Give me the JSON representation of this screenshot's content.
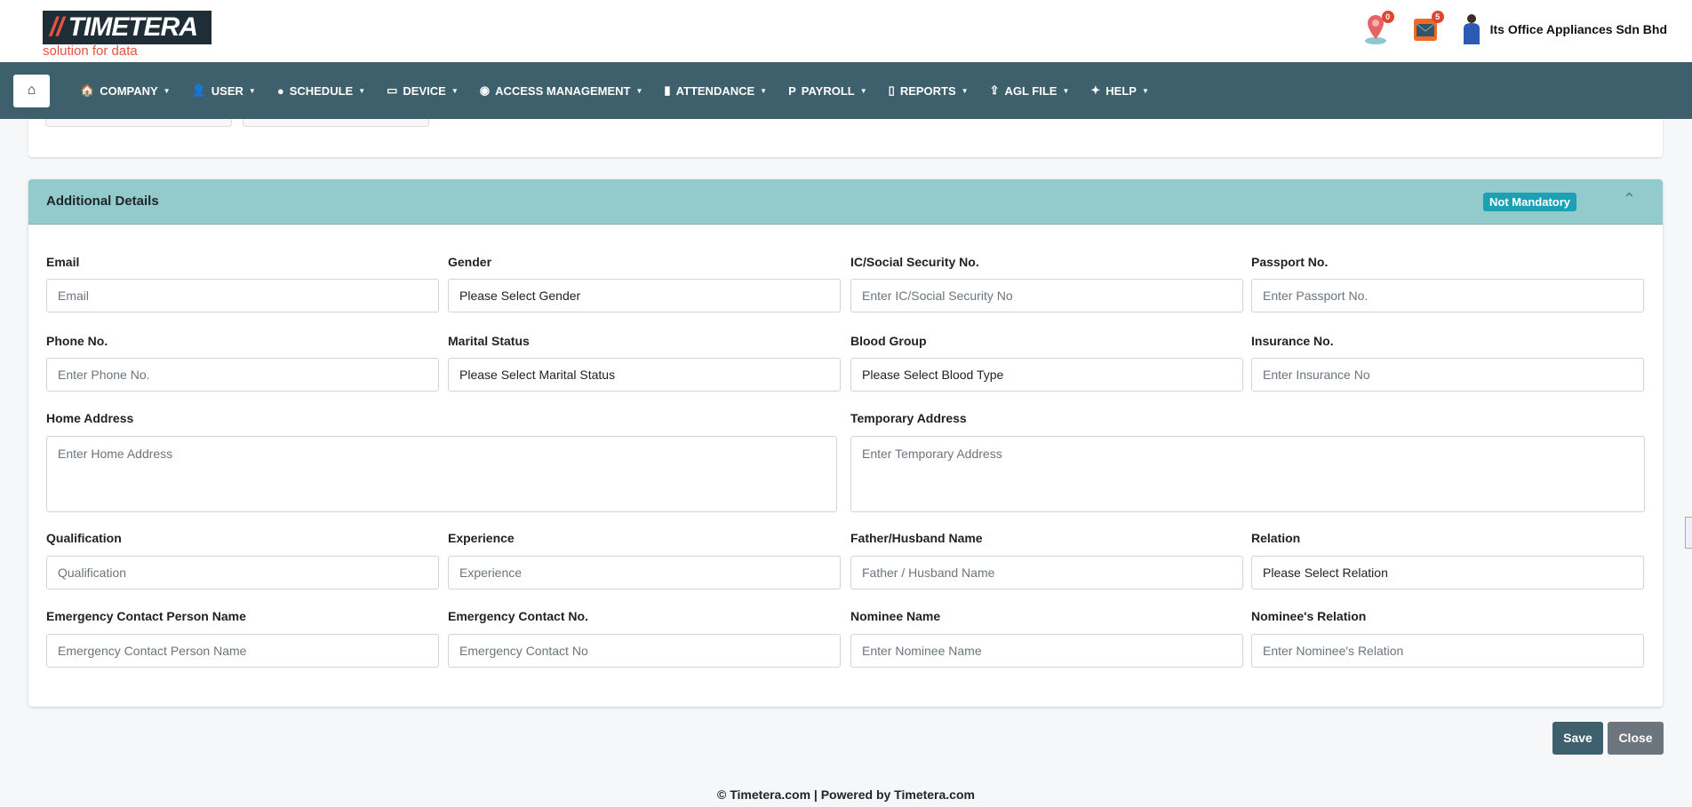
{
  "header": {
    "logo_text": "TIMETERA",
    "tagline": "solution for data",
    "location_badge": "0",
    "mail_badge": "5",
    "company": "Its Office Appliances Sdn Bhd"
  },
  "nav": {
    "items": [
      {
        "label": "COMPANY",
        "icon": "building-icon"
      },
      {
        "label": "USER",
        "icon": "user-icon"
      },
      {
        "label": "SCHEDULE",
        "icon": "clock-icon"
      },
      {
        "label": "DEVICE",
        "icon": "monitor-icon"
      },
      {
        "label": "ACCESS MANAGEMENT",
        "icon": "accessibility-icon"
      },
      {
        "label": "ATTENDANCE",
        "icon": "clipboard-icon"
      },
      {
        "label": "PAYROLL",
        "icon": "paypal-icon"
      },
      {
        "label": "REPORTS",
        "icon": "file-icon"
      },
      {
        "label": "AGL FILE",
        "icon": "upload-icon"
      },
      {
        "label": "HELP",
        "icon": "handshake-icon"
      }
    ]
  },
  "section": {
    "title": "Additional Details",
    "badge": "Not Mandatory"
  },
  "fields": [
    {
      "label": "Email",
      "placeholder": "Email"
    },
    {
      "label": "Gender",
      "value": "Please Select Gender"
    },
    {
      "label": "IC/Social Security No.",
      "placeholder": "Enter IC/Social Security No"
    },
    {
      "label": "Passport No.",
      "placeholder": "Enter Passport No."
    },
    {
      "label": "Phone No.",
      "placeholder": "Enter Phone No."
    },
    {
      "label": "Marital Status",
      "value": "Please Select Marital Status"
    },
    {
      "label": "Blood Group",
      "value": "Please Select Blood Type"
    },
    {
      "label": "Insurance No.",
      "placeholder": "Enter Insurance No"
    },
    {
      "label": "Home Address",
      "placeholder": "Enter Home Address"
    },
    {
      "label": "Temporary Address",
      "placeholder": "Enter Temporary Address"
    },
    {
      "label": "Qualification",
      "placeholder": "Qualification"
    },
    {
      "label": "Experience",
      "placeholder": "Experience"
    },
    {
      "label": "Father/Husband Name",
      "placeholder": "Father / Husband Name"
    },
    {
      "label": "Relation",
      "value": "Please Select Relation"
    },
    {
      "label": "Emergency Contact Person Name",
      "placeholder": "Emergency Contact Person Name"
    },
    {
      "label": "Emergency Contact No.",
      "placeholder": "Emergency Contact No"
    },
    {
      "label": "Nominee Name",
      "placeholder": "Enter Nominee Name"
    },
    {
      "label": "Nominee's Relation",
      "placeholder": "Enter Nominee's Relation"
    }
  ],
  "buttons": {
    "save": "Save",
    "close": "Close"
  },
  "footer": "© Timetera.com  |  Powered by Timetera.com",
  "colors": {
    "nav": "#3d606c",
    "section_header": "#93cacb",
    "badge": "#1aa1b4",
    "save": "#3d606c",
    "close": "#6c757d"
  }
}
